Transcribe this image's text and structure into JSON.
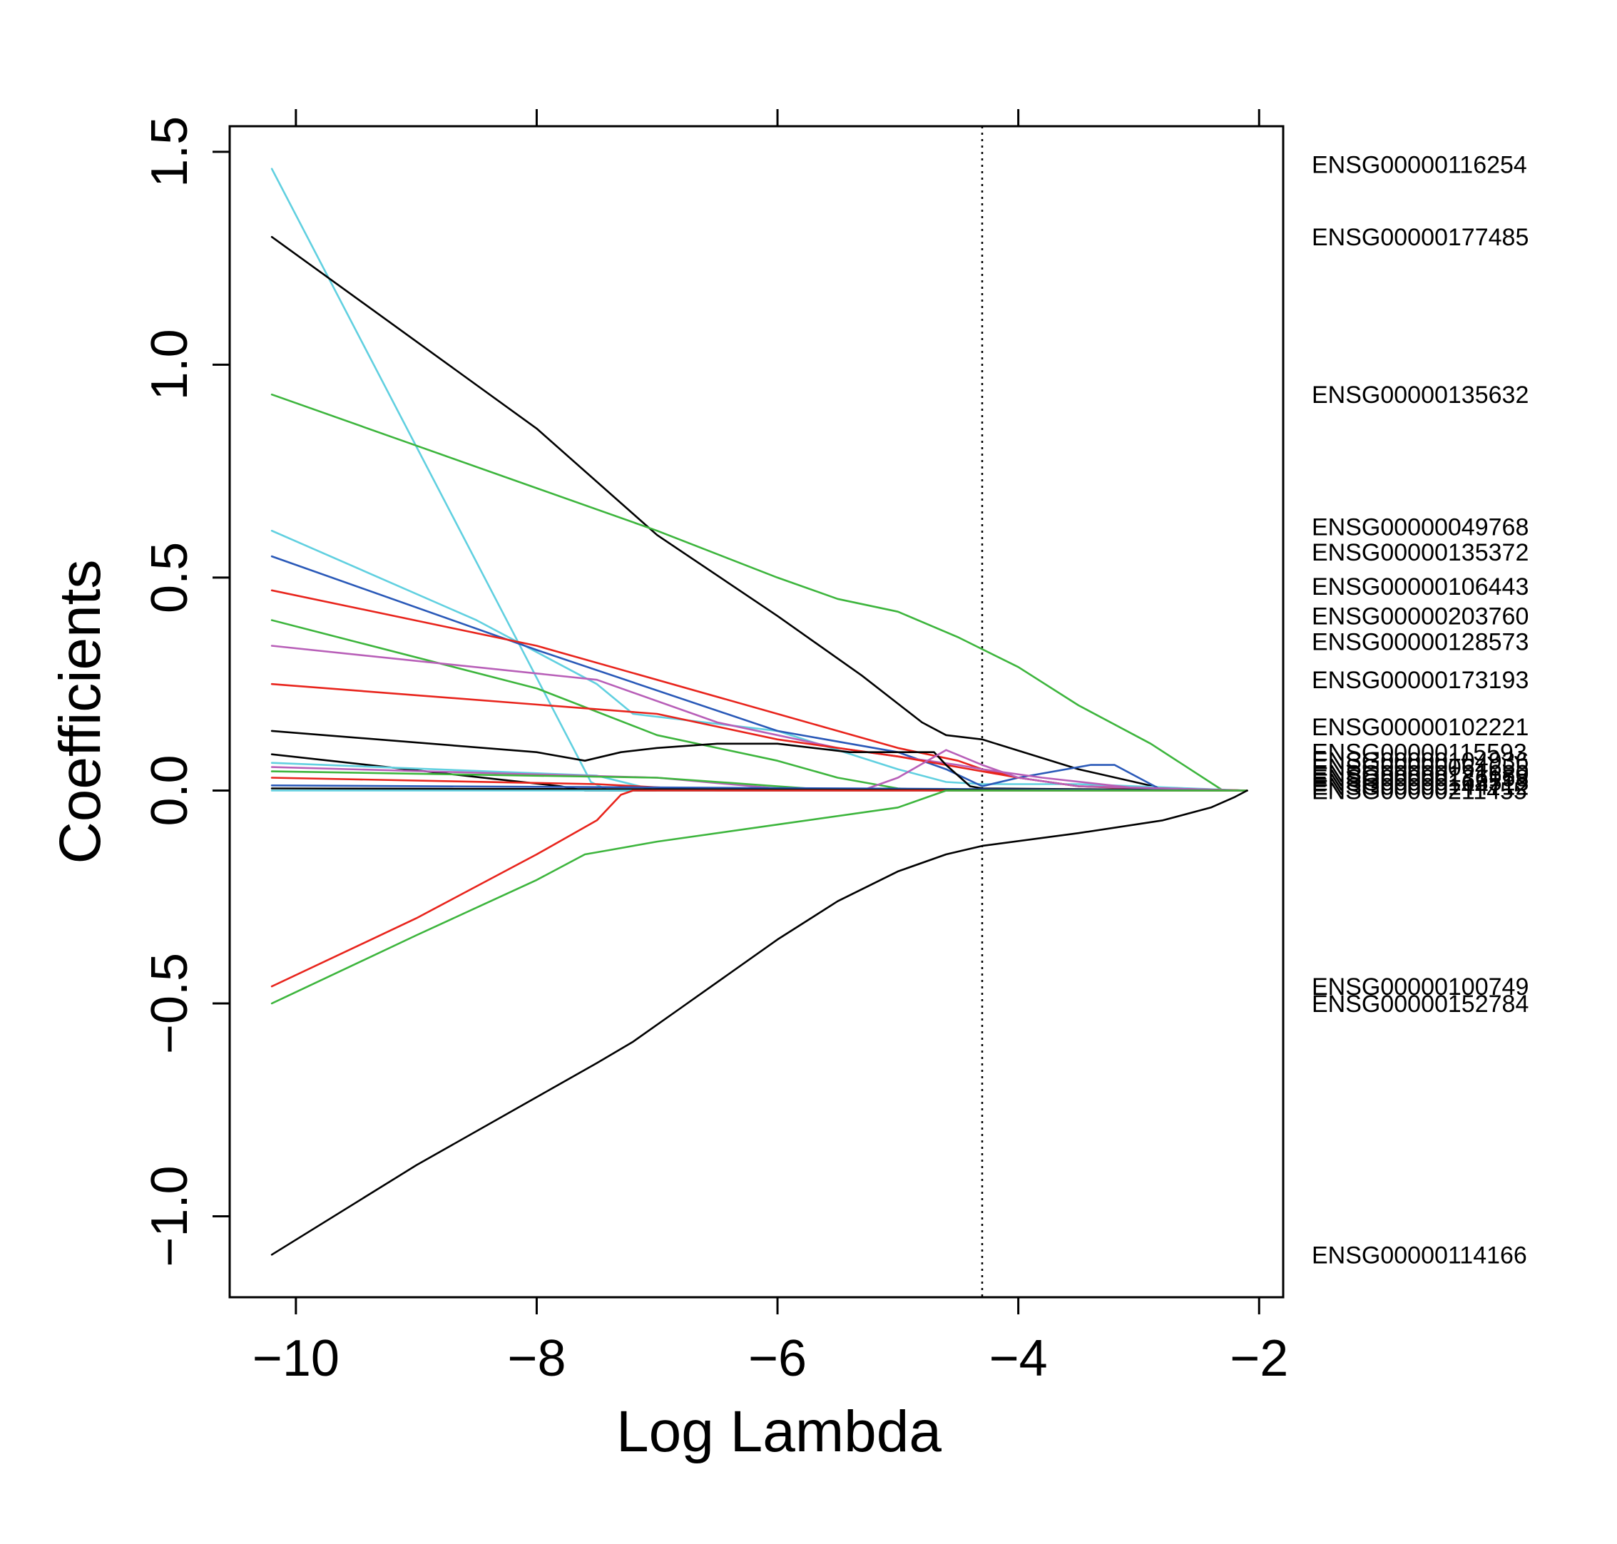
{
  "chart_data": {
    "type": "line",
    "title": "",
    "xlabel": "Log Lambda",
    "ylabel": "Coefficients",
    "xlim": [
      -10.55,
      -1.8
    ],
    "ylim": [
      -1.19,
      1.56
    ],
    "x_ticks": [
      -10,
      -8,
      -6,
      -4,
      -2
    ],
    "x_tick_labels": [
      "−10",
      "−8",
      "−6",
      "−4",
      "−2"
    ],
    "y_ticks": [
      -1.0,
      -0.5,
      0.0,
      0.5,
      1.0,
      1.5
    ],
    "y_tick_labels": [
      "−1.0",
      "−0.5",
      "0.0",
      "0.5",
      "1.0",
      "1.5"
    ],
    "vline": {
      "x": -4.3,
      "style": "dotted"
    },
    "gene_labels": [
      {
        "text": "ENSG00000116254",
        "y": 1.47
      },
      {
        "text": "ENSG00000177485",
        "y": 1.3
      },
      {
        "text": "ENSG00000135632",
        "y": 0.93
      },
      {
        "text": "ENSG00000049768",
        "y": 0.62
      },
      {
        "text": "ENSG00000135372",
        "y": 0.56
      },
      {
        "text": "ENSG00000106443",
        "y": 0.48
      },
      {
        "text": "ENSG00000203760",
        "y": 0.41
      },
      {
        "text": "ENSG00000128573",
        "y": 0.35
      },
      {
        "text": "ENSG00000173193",
        "y": 0.26
      },
      {
        "text": "ENSG00000102221",
        "y": 0.15
      },
      {
        "text": "ENSG00000115593",
        "y": 0.09
      },
      {
        "text": "ENSG00000104936",
        "y": 0.07
      },
      {
        "text": "ENSG00000064655",
        "y": 0.055
      },
      {
        "text": "ENSG00000121680",
        "y": 0.04
      },
      {
        "text": "ENSG00000136158",
        "y": 0.03
      },
      {
        "text": "ENSG00000163513",
        "y": 0.02
      },
      {
        "text": "ENSG00000144712",
        "y": 0.01
      },
      {
        "text": "ENSG00000211455",
        "y": 0.0
      },
      {
        "text": "ENSG00000100749",
        "y": -0.46
      },
      {
        "text": "ENSG00000152784",
        "y": -0.5
      },
      {
        "text": "ENSG00000114166",
        "y": -1.09
      }
    ],
    "series": [
      {
        "name": "ENSG00000116254",
        "color": "#61D0E0",
        "x": [
          -10.2,
          -7.55,
          -7.4,
          -2.1
        ],
        "y": [
          1.46,
          0.02,
          0.0,
          0.0
        ]
      },
      {
        "name": "ENSG00000177485",
        "color": "#000000",
        "x": [
          -10.2,
          -8.0,
          -7.0,
          -6.0,
          -5.3,
          -4.8,
          -4.6,
          -4.3,
          -3.5,
          -2.8,
          -2.1
        ],
        "y": [
          1.3,
          0.85,
          0.6,
          0.41,
          0.27,
          0.16,
          0.13,
          0.12,
          0.05,
          0.005,
          0.0
        ]
      },
      {
        "name": "ENSG00000135632",
        "color": "#3DB53D",
        "x": [
          -10.2,
          -9.0,
          -8.0,
          -7.0,
          -6.0,
          -5.5,
          -5.0,
          -4.5,
          -4.0,
          -3.5,
          -2.9,
          -2.3,
          -2.1
        ],
        "y": [
          0.93,
          0.81,
          0.71,
          0.61,
          0.5,
          0.45,
          0.42,
          0.36,
          0.29,
          0.2,
          0.11,
          0.0,
          0.0
        ]
      },
      {
        "name": "ENSG00000049768",
        "color": "#61D0E0",
        "x": [
          -10.2,
          -8.5,
          -7.5,
          -7.2,
          -6.0,
          -5.0,
          -4.6,
          -4.3,
          -3.5,
          -2.1
        ],
        "y": [
          0.61,
          0.4,
          0.25,
          0.18,
          0.14,
          0.05,
          0.02,
          0.015,
          0.015,
          0.0
        ]
      },
      {
        "name": "ENSG00000135372",
        "color": "#2A59B8",
        "x": [
          -10.2,
          -8.0,
          -6.0,
          -5.0,
          -4.6,
          -4.3,
          -4.0,
          -3.4,
          -3.2,
          -2.8,
          -2.1
        ],
        "y": [
          0.55,
          0.33,
          0.14,
          0.09,
          0.05,
          0.01,
          0.03,
          0.06,
          0.06,
          0.0,
          0.0
        ]
      },
      {
        "name": "ENSG00000106443",
        "color": "#E8241C",
        "x": [
          -10.2,
          -8.0,
          -6.0,
          -5.0,
          -4.5,
          -4.3,
          -4.0,
          -3.5,
          -3.0,
          -2.1
        ],
        "y": [
          0.47,
          0.34,
          0.18,
          0.1,
          0.07,
          0.05,
          0.03,
          0.01,
          0.005,
          0.0
        ]
      },
      {
        "name": "ENSG00000203760",
        "color": "#3DB53D",
        "x": [
          -10.2,
          -8.0,
          -7.0,
          -6.0,
          -5.5,
          -5.0,
          -4.7,
          -2.1
        ],
        "y": [
          0.4,
          0.24,
          0.13,
          0.07,
          0.03,
          0.005,
          0.0,
          0.0
        ]
      },
      {
        "name": "ENSG00000128573",
        "color": "#B85FB8",
        "x": [
          -10.2,
          -7.5,
          -6.5,
          -5.5,
          -5.0,
          -4.5,
          -4.3,
          -3.8,
          -3.0,
          -2.1
        ],
        "y": [
          0.34,
          0.26,
          0.16,
          0.1,
          0.08,
          0.06,
          0.05,
          0.03,
          0.005,
          0.0
        ]
      },
      {
        "name": "ENSG00000173193",
        "color": "#E8241C",
        "x": [
          -10.2,
          -7.0,
          -6.0,
          -5.0,
          -4.4,
          -4.0,
          -3.5,
          -2.1
        ],
        "y": [
          0.25,
          0.18,
          0.12,
          0.08,
          0.05,
          0.03,
          0.01,
          0.0
        ]
      },
      {
        "name": "ENSG00000102221",
        "color": "#000000",
        "x": [
          -10.2,
          -8.0,
          -7.6,
          -7.3,
          -7.0,
          -6.5,
          -6.0,
          -5.4,
          -5.0,
          -4.7,
          -4.6,
          -4.4,
          -4.3,
          -2.1
        ],
        "y": [
          0.14,
          0.09,
          0.07,
          0.09,
          0.1,
          0.11,
          0.11,
          0.09,
          0.09,
          0.09,
          0.06,
          0.01,
          0.005,
          0.0
        ]
      },
      {
        "name": "ENSG00000115593",
        "color": "#000000",
        "x": [
          -10.2,
          -7.8,
          -7.6,
          -2.1
        ],
        "y": [
          0.085,
          0.01,
          0.0,
          0.0
        ]
      },
      {
        "name": "ENSG00000104936",
        "color": "#61D0E0",
        "x": [
          -10.2,
          -7.5,
          -7.0,
          -2.1
        ],
        "y": [
          0.065,
          0.035,
          0.0,
          0.0
        ]
      },
      {
        "name": "ENSG00000064655",
        "color": "#B85FB8",
        "x": [
          -10.2,
          -7.0,
          -6.0,
          -5.3,
          -5.0,
          -4.6,
          -4.3,
          -4.0,
          -3.5,
          -2.1
        ],
        "y": [
          0.055,
          0.03,
          0.005,
          0.0,
          0.03,
          0.095,
          0.06,
          0.03,
          0.01,
          0.0
        ]
      },
      {
        "name": "ENSG00000121680",
        "color": "#3DB53D",
        "x": [
          -10.2,
          -7.0,
          -6.0,
          -5.5,
          -2.1
        ],
        "y": [
          0.045,
          0.03,
          0.01,
          0.0,
          0.0
        ]
      },
      {
        "name": "ENSG00000136158",
        "color": "#E8241C",
        "x": [
          -10.2,
          -7.5,
          -6.5,
          -2.1
        ],
        "y": [
          0.03,
          0.015,
          0.0,
          0.0
        ]
      },
      {
        "name": "ENSG00000163513",
        "color": "#2A59B8",
        "x": [
          -10.2,
          -2.1
        ],
        "y": [
          0.012,
          0.0
        ]
      },
      {
        "name": "ENSG00000144712",
        "color": "#000000",
        "x": [
          -10.2,
          -2.1
        ],
        "y": [
          0.005,
          0.0
        ]
      },
      {
        "name": "ENSG00000211455",
        "color": "#61D0E0",
        "x": [
          -10.2,
          -2.1
        ],
        "y": [
          0.0,
          0.0
        ]
      },
      {
        "name": "ENSG00000100749",
        "color": "#E8241C",
        "x": [
          -10.2,
          -9.0,
          -8.0,
          -7.5,
          -7.3,
          -7.2,
          -2.1
        ],
        "y": [
          -0.46,
          -0.3,
          -0.15,
          -0.07,
          -0.01,
          0.0,
          0.0
        ]
      },
      {
        "name": "ENSG00000152784",
        "color": "#3DB53D",
        "x": [
          -10.2,
          -9.0,
          -8.0,
          -7.6,
          -7.4,
          -7.0,
          -6.0,
          -5.0,
          -4.6,
          -4.3,
          -2.1
        ],
        "y": [
          -0.5,
          -0.34,
          -0.21,
          -0.15,
          -0.14,
          -0.12,
          -0.08,
          -0.04,
          0.0,
          0.0,
          0.0
        ]
      },
      {
        "name": "ENSG00000114166",
        "color": "#000000",
        "x": [
          -10.2,
          -9.0,
          -7.5,
          -7.2,
          -6.8,
          -6.0,
          -5.5,
          -5.0,
          -4.6,
          -4.3,
          -3.5,
          -2.8,
          -2.4,
          -2.2,
          -2.1
        ],
        "y": [
          -1.09,
          -0.88,
          -0.64,
          -0.59,
          -0.51,
          -0.35,
          -0.26,
          -0.19,
          -0.15,
          -0.13,
          -0.1,
          -0.07,
          -0.04,
          -0.015,
          0.0
        ]
      }
    ]
  }
}
